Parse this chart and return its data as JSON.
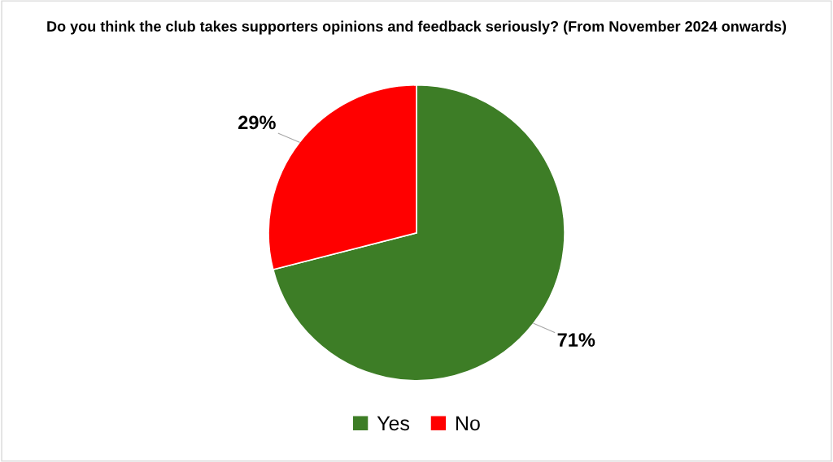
{
  "chart_data": {
    "type": "pie",
    "title": "Do you think the club takes supporters opinions and feedback seriously? (From November 2024 onwards)",
    "categories": [
      "Yes",
      "No"
    ],
    "values": [
      71,
      29
    ],
    "colors": [
      "#3d7d26",
      "#ff0000"
    ],
    "value_labels": [
      "71%",
      "29%"
    ],
    "legend": "bottom"
  }
}
